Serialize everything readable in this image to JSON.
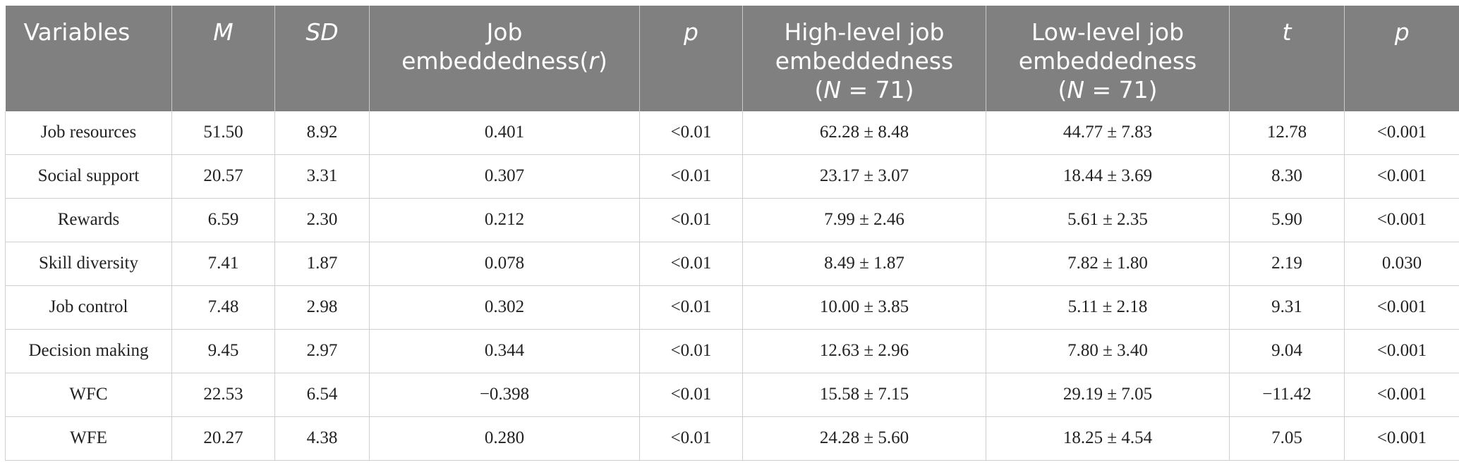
{
  "table": {
    "headers": [
      {
        "parts": [
          {
            "text": "Variables",
            "italic": false
          }
        ]
      },
      {
        "parts": [
          {
            "text": "M",
            "italic": true
          }
        ]
      },
      {
        "parts": [
          {
            "text": "SD",
            "italic": true
          }
        ]
      },
      {
        "lines": [
          [
            {
              "text": "Job",
              "italic": false
            }
          ],
          [
            {
              "text": "embeddedness(",
              "italic": false
            },
            {
              "text": "r",
              "italic": true
            },
            {
              "text": ")",
              "italic": false
            }
          ]
        ]
      },
      {
        "parts": [
          {
            "text": "p",
            "italic": true
          }
        ]
      },
      {
        "lines": [
          [
            {
              "text": "High-level job",
              "italic": false
            }
          ],
          [
            {
              "text": "embeddedness",
              "italic": false
            }
          ],
          [
            {
              "text": "(",
              "italic": false
            },
            {
              "text": "N",
              "italic": true
            },
            {
              "text": " = 71)",
              "italic": false
            }
          ]
        ]
      },
      {
        "lines": [
          [
            {
              "text": "Low-level job",
              "italic": false
            }
          ],
          [
            {
              "text": "embeddedness",
              "italic": false
            }
          ],
          [
            {
              "text": "(",
              "italic": false
            },
            {
              "text": "N",
              "italic": true
            },
            {
              "text": " = 71)",
              "italic": false
            }
          ]
        ]
      },
      {
        "parts": [
          {
            "text": "t",
            "italic": true
          }
        ]
      },
      {
        "parts": [
          {
            "text": "p",
            "italic": true
          }
        ]
      }
    ],
    "rows": [
      [
        "Job resources",
        "51.50",
        "8.92",
        "0.401",
        "<0.01",
        "62.28 ± 8.48",
        "44.77 ± 7.83",
        "12.78",
        "<0.001"
      ],
      [
        "Social support",
        "20.57",
        "3.31",
        "0.307",
        "<0.01",
        "23.17 ± 3.07",
        "18.44 ± 3.69",
        "8.30",
        "<0.001"
      ],
      [
        "Rewards",
        "6.59",
        "2.30",
        "0.212",
        "<0.01",
        "7.99 ± 2.46",
        "5.61 ± 2.35",
        "5.90",
        "<0.001"
      ],
      [
        "Skill diversity",
        "7.41",
        "1.87",
        "0.078",
        "<0.01",
        "8.49 ± 1.87",
        "7.82 ± 1.80",
        "2.19",
        "0.030"
      ],
      [
        "Job control",
        "7.48",
        "2.98",
        "0.302",
        "<0.01",
        "10.00 ± 3.85",
        "5.11 ± 2.18",
        "9.31",
        "<0.001"
      ],
      [
        "Decision making",
        "9.45",
        "2.97",
        "0.344",
        "<0.01",
        "12.63 ± 2.96",
        "7.80 ± 3.40",
        "9.04",
        "<0.001"
      ],
      [
        "WFC",
        "22.53",
        "6.54",
        "−0.398",
        "<0.01",
        "15.58 ± 7.15",
        "29.19 ± 7.05",
        "−11.42",
        "<0.001"
      ],
      [
        "WFE",
        "20.27",
        "4.38",
        "0.280",
        "<0.01",
        "24.28 ± 5.60",
        "18.25 ± 4.54",
        "7.05",
        "<0.001"
      ]
    ]
  },
  "colors": {
    "header_bg": "#808080",
    "header_text": "#ffffff",
    "grid": "#cfcfcf",
    "cell_text": "#222222"
  }
}
